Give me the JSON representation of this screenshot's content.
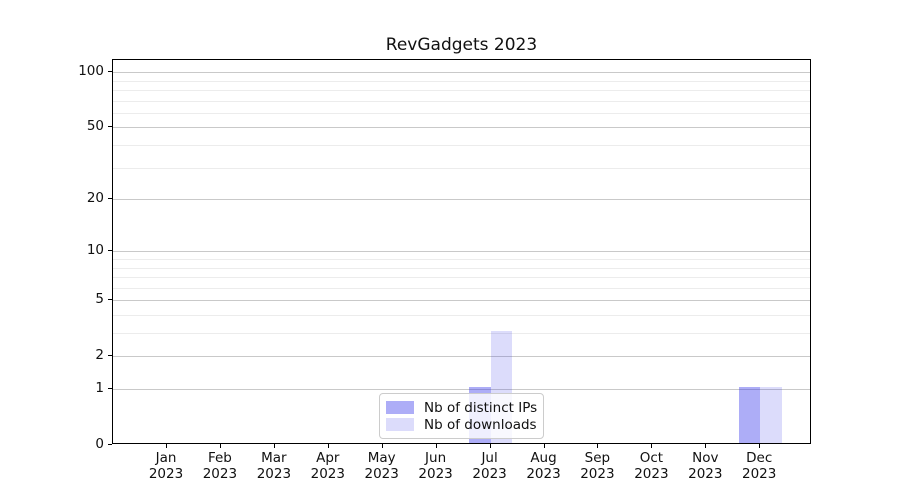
{
  "title": "RevGadgets 2023",
  "chart_data": {
    "type": "bar",
    "title": "RevGadgets 2023",
    "categories": [
      "Jan 2023",
      "Feb 2023",
      "Mar 2023",
      "Apr 2023",
      "May 2023",
      "Jun 2023",
      "Jul 2023",
      "Aug 2023",
      "Sep 2023",
      "Oct 2023",
      "Nov 2023",
      "Dec 2023"
    ],
    "series": [
      {
        "name": "Nb of distinct IPs",
        "color": "rgba(60,60,235,0.42)",
        "values": [
          0,
          0,
          0,
          0,
          0,
          0,
          1,
          0,
          0,
          0,
          0,
          1
        ]
      },
      {
        "name": "Nb of downloads",
        "color": "rgba(60,60,235,0.18)",
        "values": [
          0,
          0,
          0,
          0,
          0,
          0,
          3,
          0,
          0,
          0,
          0,
          1
        ]
      }
    ],
    "xlabel": "",
    "ylabel": "",
    "yscale": "log1p",
    "ylim": [
      0,
      116
    ],
    "y_major_ticks": [
      0,
      1,
      2,
      5,
      10,
      20,
      50,
      100
    ],
    "y_minor_ticks": [
      3,
      4,
      6,
      7,
      8,
      9,
      30,
      40,
      60,
      70,
      80,
      90
    ],
    "grid": true,
    "legend_position": "lower center",
    "colors": {
      "major_grid": "#c9c9c9",
      "minor_grid": "#ececec",
      "spine": "#000000",
      "legend_border": "#cccccc"
    }
  }
}
